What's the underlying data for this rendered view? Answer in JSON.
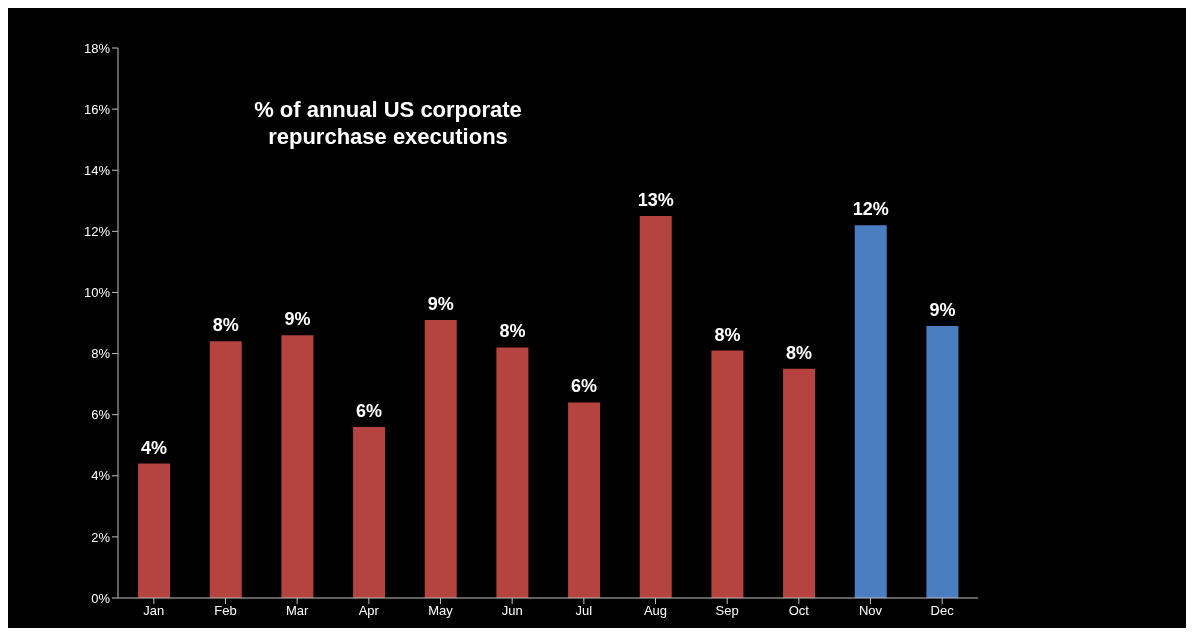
{
  "chart_data": {
    "type": "bar",
    "title": "% of annual US corporate repurchase executions",
    "categories": [
      "Jan",
      "Feb",
      "Mar",
      "Apr",
      "May",
      "Jun",
      "Jul",
      "Aug",
      "Sep",
      "Oct",
      "Nov",
      "Dec"
    ],
    "values": [
      4.4,
      8.4,
      8.6,
      5.6,
      9.1,
      8.2,
      6.4,
      12.5,
      8.1,
      7.5,
      12.2,
      8.9
    ],
    "colors": [
      "#b5433f",
      "#b5433f",
      "#b5433f",
      "#b5433f",
      "#b5433f",
      "#b5433f",
      "#b5433f",
      "#b5433f",
      "#b5433f",
      "#b5433f",
      "#4a7ec0",
      "#4a7ec0"
    ],
    "value_labels": [
      "4%",
      "8%",
      "9%",
      "6%",
      "9%",
      "8%",
      "6%",
      "13%",
      "8%",
      "8%",
      "12%",
      "9%"
    ],
    "ylim": [
      0,
      18
    ],
    "yticks": [
      {
        "value": 0,
        "label": "0%"
      },
      {
        "value": 2,
        "label": "2%"
      },
      {
        "value": 4,
        "label": "4%"
      },
      {
        "value": 6,
        "label": "6%"
      },
      {
        "value": 8,
        "label": "8%"
      },
      {
        "value": 10,
        "label": "10%"
      },
      {
        "value": 12,
        "label": "12%"
      },
      {
        "value": 14,
        "label": "14%"
      },
      {
        "value": 16,
        "label": "16%"
      },
      {
        "value": 18,
        "label": "18%"
      }
    ],
    "grid": false
  }
}
